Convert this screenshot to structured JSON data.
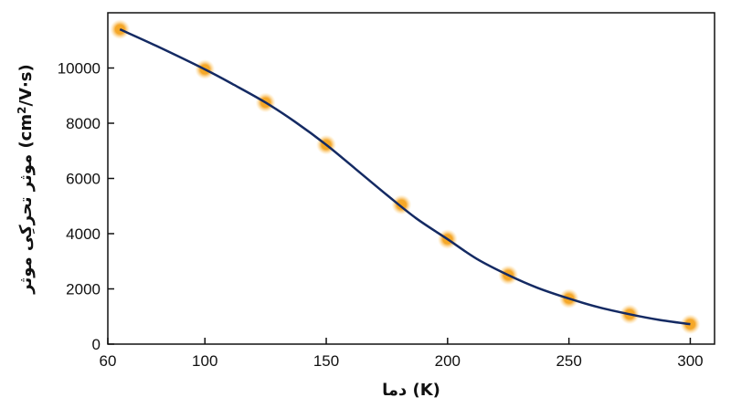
{
  "chart_data": {
    "type": "scatter",
    "xlabel": "دما (K)",
    "ylabel_main": "موثر تحرکِی موثر (cm",
    "ylabel_sup": "2",
    "ylabel_tail": "/V·s)",
    "xlim": [
      60,
      310
    ],
    "ylim": [
      0,
      12000
    ],
    "x_ticks": [
      60,
      100,
      150,
      200,
      250,
      300
    ],
    "y_ticks": [
      0,
      2000,
      4000,
      6000,
      8000,
      10000
    ],
    "grid": false,
    "points": {
      "x": [
        65,
        100,
        125,
        150,
        181,
        200,
        225,
        250,
        275,
        300
      ],
      "y": [
        11400,
        9950,
        8750,
        7220,
        5050,
        3800,
        2500,
        1650,
        1080,
        720
      ]
    },
    "fit_curve": {
      "x": [
        65,
        80,
        100,
        112,
        125,
        137,
        150,
        162,
        175,
        187,
        200,
        212,
        225,
        237,
        250,
        262,
        275,
        287,
        300
      ],
      "y": [
        11400,
        10800,
        9950,
        9390,
        8750,
        8060,
        7220,
        6350,
        5400,
        4560,
        3800,
        3090,
        2500,
        2040,
        1650,
        1340,
        1080,
        880,
        720
      ]
    },
    "colors": {
      "point": "#f5a623",
      "point_glow": "#ffd68a",
      "curve": "#142a63",
      "axis": "#111111"
    }
  }
}
